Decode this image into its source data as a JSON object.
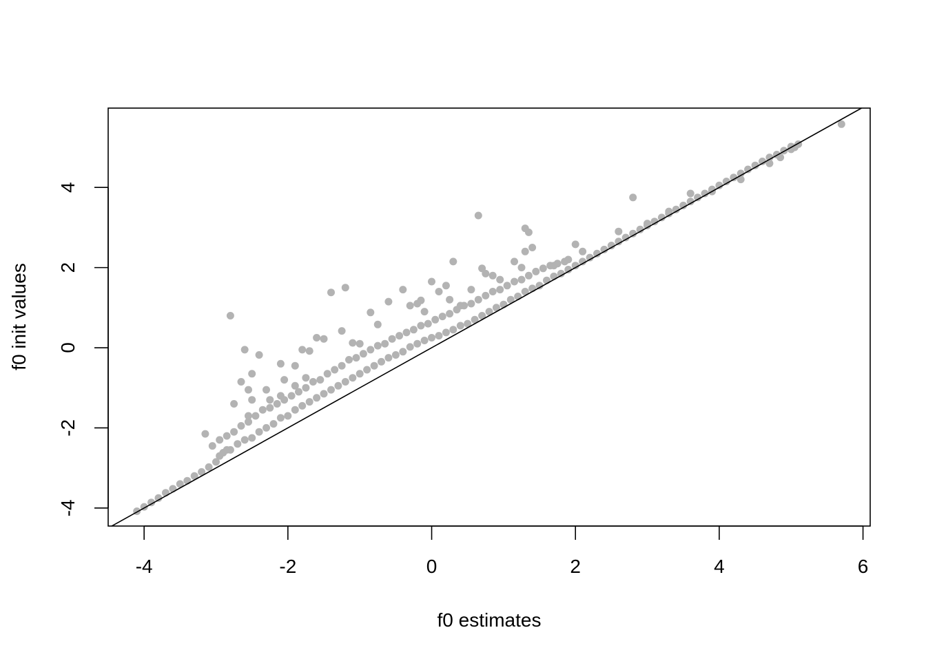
{
  "chart_data": {
    "type": "scatter",
    "title": "",
    "xlabel": "f0 estimates",
    "ylabel": "f0 init values",
    "xlim": [
      -4.5,
      6.1
    ],
    "ylim": [
      -4.45,
      5.98
    ],
    "x_ticks": [
      -4,
      -2,
      0,
      2,
      4,
      6
    ],
    "y_ticks": [
      -4,
      -2,
      0,
      2,
      4
    ],
    "x_tick_labels": [
      "-4",
      "-2",
      "0",
      "2",
      "4",
      "6"
    ],
    "y_tick_labels": [
      "-4",
      "-2",
      "0",
      "2",
      "4"
    ],
    "grid": false,
    "legend": "none",
    "point_color": "#b3b3b3",
    "reference_line": {
      "type": "identity",
      "slope": 1,
      "intercept": 0,
      "color": "#000000"
    },
    "series": [
      {
        "points": [
          [
            -4.1,
            -4.08
          ],
          [
            -4.0,
            -3.97
          ],
          [
            -3.9,
            -3.86
          ],
          [
            -3.8,
            -3.75
          ],
          [
            -3.7,
            -3.62
          ],
          [
            -3.6,
            -3.52
          ],
          [
            -3.5,
            -3.4
          ],
          [
            -3.4,
            -3.32
          ],
          [
            -3.3,
            -3.2
          ],
          [
            -3.2,
            -3.1
          ],
          [
            -3.1,
            -2.98
          ],
          [
            -3.0,
            -2.85
          ],
          [
            -2.95,
            -2.7
          ],
          [
            -2.9,
            -2.62
          ],
          [
            -2.85,
            -2.55
          ],
          [
            -2.8,
            -2.55
          ],
          [
            -2.7,
            -2.4
          ],
          [
            -2.6,
            -2.3
          ],
          [
            -2.5,
            -2.25
          ],
          [
            -2.4,
            -2.1
          ],
          [
            -2.3,
            -2.0
          ],
          [
            -2.2,
            -1.9
          ],
          [
            -2.1,
            -1.75
          ],
          [
            -2.0,
            -1.7
          ],
          [
            -1.9,
            -1.55
          ],
          [
            -1.8,
            -1.45
          ],
          [
            -1.7,
            -1.35
          ],
          [
            -1.6,
            -1.25
          ],
          [
            -1.5,
            -1.15
          ],
          [
            -1.4,
            -1.05
          ],
          [
            -1.3,
            -0.95
          ],
          [
            -1.2,
            -0.85
          ],
          [
            -1.1,
            -0.75
          ],
          [
            -1.0,
            -0.65
          ],
          [
            -0.9,
            -0.55
          ],
          [
            -0.8,
            -0.45
          ],
          [
            -0.7,
            -0.35
          ],
          [
            -0.6,
            -0.25
          ],
          [
            -0.5,
            -0.18
          ],
          [
            -0.4,
            -0.1
          ],
          [
            -0.3,
            0.02
          ],
          [
            -0.2,
            0.1
          ],
          [
            -0.1,
            0.18
          ],
          [
            0.0,
            0.25
          ],
          [
            0.1,
            0.3
          ],
          [
            0.2,
            0.38
          ],
          [
            0.3,
            0.45
          ],
          [
            0.4,
            0.55
          ],
          [
            0.5,
            0.6
          ],
          [
            0.6,
            0.7
          ],
          [
            0.7,
            0.8
          ],
          [
            0.8,
            0.9
          ],
          [
            0.9,
            1.0
          ],
          [
            1.0,
            1.08
          ],
          [
            1.1,
            1.2
          ],
          [
            1.2,
            1.28
          ],
          [
            1.3,
            1.4
          ],
          [
            1.4,
            1.48
          ],
          [
            1.5,
            1.55
          ],
          [
            1.6,
            1.68
          ],
          [
            1.7,
            1.78
          ],
          [
            1.8,
            1.85
          ],
          [
            1.9,
            1.95
          ],
          [
            2.0,
            2.05
          ],
          [
            2.1,
            2.15
          ],
          [
            2.2,
            2.25
          ],
          [
            2.3,
            2.35
          ],
          [
            2.4,
            2.45
          ],
          [
            2.5,
            2.55
          ],
          [
            2.6,
            2.65
          ],
          [
            2.7,
            2.75
          ],
          [
            2.8,
            2.85
          ],
          [
            2.9,
            2.95
          ],
          [
            3.0,
            3.05
          ],
          [
            3.1,
            3.15
          ],
          [
            3.2,
            3.25
          ],
          [
            3.3,
            3.35
          ],
          [
            3.4,
            3.45
          ],
          [
            3.5,
            3.55
          ],
          [
            3.6,
            3.65
          ],
          [
            3.7,
            3.75
          ],
          [
            3.8,
            3.85
          ],
          [
            3.9,
            3.95
          ],
          [
            4.0,
            4.05
          ],
          [
            4.1,
            4.15
          ],
          [
            4.2,
            4.25
          ],
          [
            4.3,
            4.35
          ],
          [
            4.4,
            4.45
          ],
          [
            4.5,
            4.55
          ],
          [
            4.6,
            4.65
          ],
          [
            4.7,
            4.75
          ],
          [
            4.8,
            4.82
          ],
          [
            4.9,
            4.92
          ],
          [
            5.0,
            5.02
          ],
          [
            5.1,
            5.08
          ],
          [
            -3.05,
            -2.45
          ],
          [
            -2.95,
            -2.3
          ],
          [
            -2.85,
            -2.2
          ],
          [
            -2.75,
            -2.1
          ],
          [
            -2.65,
            -1.95
          ],
          [
            -2.55,
            -1.85
          ],
          [
            -2.45,
            -1.7
          ],
          [
            -2.35,
            -1.55
          ],
          [
            -2.25,
            -1.5
          ],
          [
            -2.15,
            -1.4
          ],
          [
            -2.05,
            -1.3
          ],
          [
            -1.95,
            -1.2
          ],
          [
            -1.85,
            -1.1
          ],
          [
            -1.75,
            -1.0
          ],
          [
            -1.65,
            -0.85
          ],
          [
            -1.55,
            -0.8
          ],
          [
            -1.45,
            -0.65
          ],
          [
            -1.35,
            -0.55
          ],
          [
            -1.25,
            -0.45
          ],
          [
            -1.15,
            -0.3
          ],
          [
            -1.05,
            -0.25
          ],
          [
            -0.95,
            -0.15
          ],
          [
            -0.85,
            -0.05
          ],
          [
            -0.75,
            0.05
          ],
          [
            -0.65,
            0.1
          ],
          [
            -0.55,
            0.22
          ],
          [
            -0.45,
            0.3
          ],
          [
            -0.35,
            0.38
          ],
          [
            -0.25,
            0.45
          ],
          [
            -0.15,
            0.55
          ],
          [
            -0.05,
            0.6
          ],
          [
            0.05,
            0.7
          ],
          [
            0.15,
            0.78
          ],
          [
            0.25,
            0.85
          ],
          [
            0.35,
            0.95
          ],
          [
            0.45,
            1.05
          ],
          [
            0.55,
            1.1
          ],
          [
            0.65,
            1.2
          ],
          [
            0.75,
            1.3
          ],
          [
            0.85,
            1.4
          ],
          [
            0.95,
            1.45
          ],
          [
            1.05,
            1.55
          ],
          [
            1.15,
            1.65
          ],
          [
            1.25,
            1.7
          ],
          [
            1.35,
            1.8
          ],
          [
            1.45,
            1.9
          ],
          [
            1.55,
            1.98
          ],
          [
            1.65,
            2.05
          ],
          [
            1.75,
            2.1
          ],
          [
            1.85,
            2.15
          ],
          [
            -2.8,
            0.8
          ],
          [
            -2.6,
            -0.05
          ],
          [
            -2.4,
            -0.18
          ],
          [
            -2.5,
            -0.65
          ],
          [
            -2.65,
            -0.85
          ],
          [
            -2.55,
            -1.05
          ],
          [
            -2.5,
            -1.3
          ],
          [
            -2.75,
            -1.4
          ],
          [
            -2.55,
            -1.7
          ],
          [
            -3.15,
            -2.15
          ],
          [
            -1.4,
            1.38
          ],
          [
            -1.2,
            1.5
          ],
          [
            -1.6,
            0.25
          ],
          [
            -1.5,
            0.22
          ],
          [
            -1.8,
            -0.05
          ],
          [
            -1.7,
            -0.08
          ],
          [
            -2.1,
            -0.4
          ],
          [
            -1.9,
            -0.45
          ],
          [
            -2.05,
            -0.8
          ],
          [
            -2.25,
            -1.3
          ],
          [
            -2.3,
            -1.05
          ],
          [
            -2.1,
            -1.2
          ],
          [
            -1.9,
            -0.95
          ],
          [
            -1.75,
            -0.75
          ],
          [
            -1.25,
            0.42
          ],
          [
            -1.1,
            0.12
          ],
          [
            -1.0,
            0.1
          ],
          [
            -0.85,
            0.88
          ],
          [
            -0.75,
            0.58
          ],
          [
            -0.6,
            1.15
          ],
          [
            -0.4,
            1.45
          ],
          [
            -0.3,
            1.05
          ],
          [
            -0.2,
            1.1
          ],
          [
            -0.15,
            1.18
          ],
          [
            -0.1,
            0.9
          ],
          [
            0.0,
            1.65
          ],
          [
            0.1,
            1.4
          ],
          [
            0.2,
            1.55
          ],
          [
            0.3,
            2.15
          ],
          [
            0.25,
            1.2
          ],
          [
            0.4,
            1.05
          ],
          [
            0.55,
            1.45
          ],
          [
            0.65,
            3.3
          ],
          [
            0.7,
            1.98
          ],
          [
            0.75,
            1.85
          ],
          [
            0.85,
            1.8
          ],
          [
            0.95,
            1.7
          ],
          [
            1.15,
            2.15
          ],
          [
            1.25,
            2.0
          ],
          [
            1.3,
            2.98
          ],
          [
            1.35,
            2.88
          ],
          [
            1.4,
            2.5
          ],
          [
            1.3,
            2.4
          ],
          [
            1.7,
            2.05
          ],
          [
            1.9,
            2.2
          ],
          [
            2.0,
            2.58
          ],
          [
            2.1,
            2.4
          ],
          [
            2.5,
            2.55
          ],
          [
            2.6,
            2.9
          ],
          [
            2.8,
            3.75
          ],
          [
            3.0,
            3.1
          ],
          [
            3.3,
            3.4
          ],
          [
            3.6,
            3.85
          ],
          [
            3.9,
            3.9
          ],
          [
            4.3,
            4.2
          ],
          [
            4.7,
            4.6
          ],
          [
            4.85,
            4.75
          ],
          [
            5.0,
            4.95
          ],
          [
            5.7,
            5.58
          ],
          [
            5.05,
            5.0
          ]
        ]
      }
    ]
  }
}
